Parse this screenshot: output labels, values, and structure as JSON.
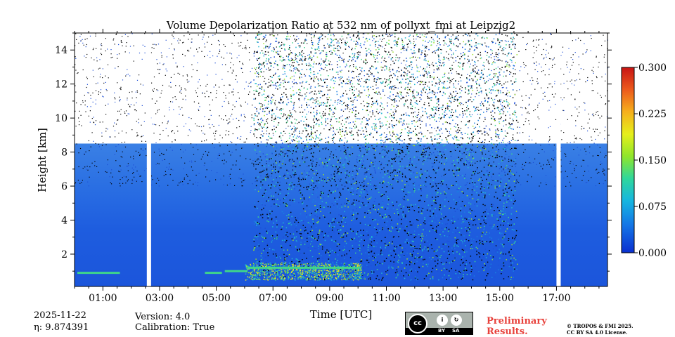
{
  "chart_data": {
    "type": "heatmap",
    "title": "Volume Depolarization Ratio at 532 nm of pollyxt_fmi at Leipzig2",
    "xlabel": "Time [UTC]",
    "ylabel": "Height [km]",
    "x_unit": "hours UTC",
    "xlim": [
      0,
      18.8
    ],
    "ylim": [
      0.1,
      15.0
    ],
    "xticks": [
      1,
      3,
      5,
      7,
      9,
      11,
      13,
      15,
      17
    ],
    "xtick_labels": [
      "01:00",
      "03:00",
      "05:00",
      "07:00",
      "09:00",
      "11:00",
      "13:00",
      "15:00",
      "17:00"
    ],
    "yticks": [
      2,
      4,
      6,
      8,
      10,
      12,
      14
    ],
    "ytick_labels": [
      "2",
      "4",
      "6",
      "8",
      "10",
      "12",
      "14"
    ],
    "colorbar": {
      "range": [
        0.0,
        0.3
      ],
      "ticks": [
        0.0,
        0.075,
        0.15,
        0.225,
        0.3
      ],
      "tick_labels": [
        "0.000",
        "0.075",
        "0.150",
        "0.225",
        "0.300"
      ],
      "colormap": "jet",
      "colors": [
        "#1f4fd6",
        "#1a7fe0",
        "#22b8d0",
        "#3fd68a",
        "#9be22a",
        "#f3e81f",
        "#f7a21b",
        "#e8411e",
        "#c81414"
      ]
    },
    "data_gaps_hours": [
      [
        2.55,
        2.7
      ],
      [
        17.0,
        17.15
      ]
    ],
    "background_value": 0.01,
    "regions": [
      {
        "description": "noisy depolarization layer",
        "t_start": 6.3,
        "t_end": 15.6,
        "h_start": 0.5,
        "h_end": 15.0,
        "value_range": [
          0.0,
          0.15
        ]
      },
      {
        "description": "near-surface elevated depolarization",
        "t_start": 6.0,
        "t_end": 10.1,
        "h_start": 0.5,
        "h_end": 1.5,
        "value_range": [
          0.05,
          0.2
        ]
      }
    ],
    "cloud_bases_km": [
      {
        "t_start": 0.1,
        "t_end": 1.6,
        "h": 0.9
      },
      {
        "t_start": 4.6,
        "t_end": 5.2,
        "h": 0.9
      },
      {
        "t_start": 5.3,
        "t_end": 6.1,
        "h": 1.0
      },
      {
        "t_start": 6.1,
        "t_end": 10.1,
        "h": 1.2
      }
    ]
  },
  "footer": {
    "date": "2025-11-22",
    "eta": "η: 9.874391",
    "version": "Version: 4.0",
    "calibration": "Calibration: True",
    "license_badge": {
      "left": "BY",
      "right": "SA"
    },
    "preliminary_line1": "Preliminary",
    "preliminary_line2": "Results.",
    "copyright_line1": "© TROPOS & FMI 2025.",
    "copyright_line2": "CC BY SA 4.0 License."
  }
}
